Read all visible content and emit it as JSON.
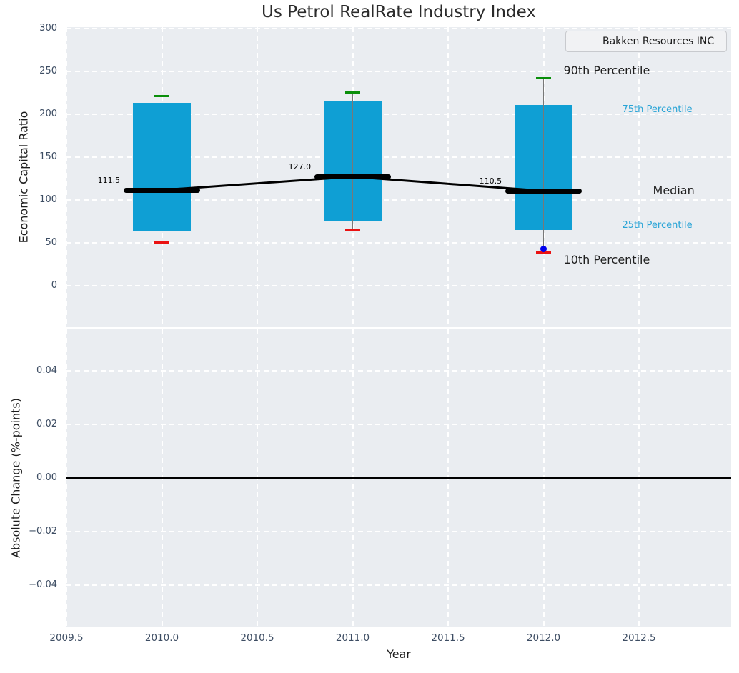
{
  "figure": {
    "title": "Us Petrol RealRate Industry Index",
    "legend": {
      "label": "Bakken Resources INC",
      "line_color": "#0000ee"
    }
  },
  "chart_data": [
    {
      "type": "box-percentile-bars",
      "panel": "top",
      "title": "Us Petrol RealRate Industry Index",
      "ylabel": "Economic Capital Ratio",
      "xlim": [
        2009.5,
        2012.983
      ],
      "ylim": [
        -48.5,
        301.5
      ],
      "yticks": [
        300,
        250,
        200,
        150,
        100,
        50,
        0
      ],
      "yticklabels": [
        "300",
        "250",
        "200",
        "150",
        "100",
        "50",
        "0"
      ],
      "xticks": [
        2009.5,
        2010.0,
        2010.5,
        2011.0,
        2011.5,
        2012.0,
        2012.5
      ],
      "grid": "white-dashed",
      "legend_position": "upper right",
      "bar_width_years": 0.3,
      "median_segment_halfwidth_years": 0.2,
      "boxes": [
        {
          "year": 2010,
          "p10": 50,
          "p25": 64,
          "median": 111.5,
          "p75": 213,
          "p90": 221,
          "label": "111.5"
        },
        {
          "year": 2011,
          "p10": 65,
          "p25": 76,
          "median": 127.0,
          "p75": 216,
          "p90": 225,
          "label": "127.0"
        },
        {
          "year": 2012,
          "p10": 38,
          "p25": 65,
          "median": 110.5,
          "p75": 211,
          "p90": 242,
          "label": "110.5"
        }
      ],
      "company_series": {
        "name": "Bakken Resources INC",
        "color": "#0000ee",
        "points": [
          {
            "year": 2012,
            "value": 43
          }
        ]
      },
      "percentile_labels": [
        {
          "text": "90th Percentile",
          "style": "dark"
        },
        {
          "text": "75th Percentile",
          "style": "cyan"
        },
        {
          "text": "Median",
          "style": "dark"
        },
        {
          "text": "25th Percentile",
          "style": "cyan"
        },
        {
          "text": "10th Percentile",
          "style": "dark"
        }
      ],
      "colors": {
        "bar": "#0f9fd4",
        "p90_cap": "#0a8f0a",
        "p10_cap": "#ea1212",
        "median_line": "#000000",
        "whisker": "#787878",
        "cyan_label": "#29a4d6",
        "panel_bg": "#eaedf1",
        "grid": "#ffffff"
      }
    },
    {
      "type": "line",
      "panel": "bottom",
      "ylabel": "Absolute Change (%-points)",
      "xlabel": "Year",
      "ylim": [
        -0.0553,
        0.0553
      ],
      "yticks": [
        0.04,
        0.02,
        0.0,
        -0.02,
        -0.04
      ],
      "yticklabels": [
        "0.04",
        "0.02",
        "0.00",
        "−0.02",
        "−0.04"
      ],
      "xticks": [
        2009.5,
        2010.0,
        2010.5,
        2011.0,
        2011.5,
        2012.0,
        2012.5
      ],
      "xticklabels": [
        "2009.5",
        "2010.0",
        "2010.5",
        "2011.0",
        "2011.5",
        "2012.0",
        "2012.5"
      ],
      "zero_line": true,
      "values": []
    }
  ]
}
